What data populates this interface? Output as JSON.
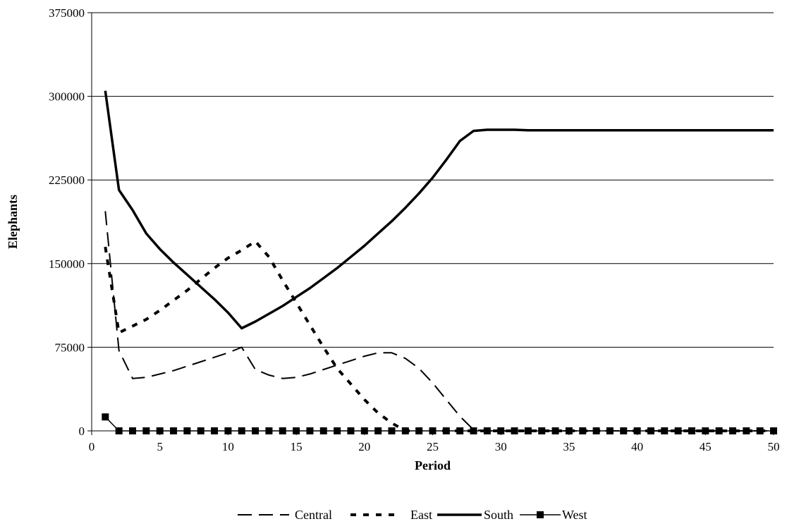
{
  "chart_data": {
    "type": "line",
    "title": "",
    "xlabel": "Period",
    "ylabel": "Elephants",
    "xlim": [
      0,
      50
    ],
    "ylim": [
      0,
      375000
    ],
    "xticks": [
      0,
      5,
      10,
      15,
      20,
      25,
      30,
      35,
      40,
      45,
      50
    ],
    "yticks": [
      0,
      75000,
      150000,
      225000,
      300000,
      375000
    ],
    "xtick_labels": [
      "0",
      "5",
      "10",
      "15",
      "20",
      "25",
      "30",
      "35",
      "40",
      "45",
      "50"
    ],
    "ytick_labels": [
      "0",
      "75000",
      "150000",
      "225000",
      "300000",
      "375000"
    ],
    "grid": "horizontal",
    "legend_position": "bottom",
    "x": [
      1,
      2,
      3,
      4,
      5,
      6,
      7,
      8,
      9,
      10,
      11,
      12,
      13,
      14,
      15,
      16,
      17,
      18,
      19,
      20,
      21,
      22,
      23,
      24,
      25,
      26,
      27,
      28,
      29,
      30,
      31,
      32,
      33,
      34,
      35,
      36,
      37,
      38,
      39,
      40,
      41,
      42,
      43,
      44,
      45,
      46,
      47,
      48,
      49,
      50
    ],
    "series": [
      {
        "name": "Central",
        "style": "long-dash",
        "color": "#000000",
        "values": [
          197000,
          72000,
          47000,
          48000,
          51000,
          54000,
          58000,
          62000,
          66000,
          70000,
          75000,
          55000,
          50000,
          47000,
          48000,
          51000,
          55000,
          59000,
          63000,
          67000,
          70000,
          70000,
          65000,
          56000,
          43000,
          28000,
          13000,
          1000,
          0,
          0,
          0,
          0,
          0,
          0,
          0,
          0,
          0,
          0,
          0,
          0,
          0,
          0,
          0,
          0,
          0,
          0,
          0,
          0,
          0,
          0
        ]
      },
      {
        "name": "East",
        "style": "short-dash",
        "color": "#000000",
        "values": [
          165000,
          88000,
          94000,
          100000,
          108000,
          117000,
          126000,
          136000,
          146000,
          155000,
          162000,
          170000,
          156000,
          135000,
          115000,
          95000,
          75000,
          56000,
          42000,
          28000,
          16000,
          7000,
          0,
          0,
          0,
          0,
          0,
          0,
          0,
          0,
          0,
          0,
          0,
          0,
          0,
          0,
          0,
          0,
          0,
          0,
          0,
          0,
          0,
          0,
          0,
          0,
          0,
          0,
          0,
          0
        ]
      },
      {
        "name": "South",
        "style": "solid",
        "color": "#000000",
        "values": [
          305000,
          216000,
          198000,
          177000,
          163000,
          151000,
          140000,
          129000,
          118000,
          106000,
          92000,
          98000,
          105000,
          112000,
          120000,
          128000,
          137000,
          146000,
          156000,
          166000,
          177000,
          188000,
          200000,
          213000,
          227000,
          243000,
          260000,
          269000,
          270000,
          270000,
          270000,
          269500,
          269500,
          269500,
          269500,
          269500,
          269500,
          269500,
          269500,
          269500,
          269500,
          269500,
          269500,
          269500,
          269500,
          269500,
          269500,
          269500,
          269500,
          269500
        ]
      },
      {
        "name": "West",
        "style": "solid-square-markers",
        "color": "#000000",
        "values": [
          12500,
          0,
          0,
          0,
          0,
          0,
          0,
          0,
          0,
          0,
          0,
          0,
          0,
          0,
          0,
          0,
          0,
          0,
          0,
          0,
          0,
          0,
          0,
          0,
          0,
          0,
          0,
          0,
          0,
          0,
          0,
          0,
          0,
          0,
          0,
          0,
          0,
          0,
          0,
          0,
          0,
          0,
          0,
          0,
          0,
          0,
          0,
          0,
          0,
          0
        ]
      }
    ]
  }
}
